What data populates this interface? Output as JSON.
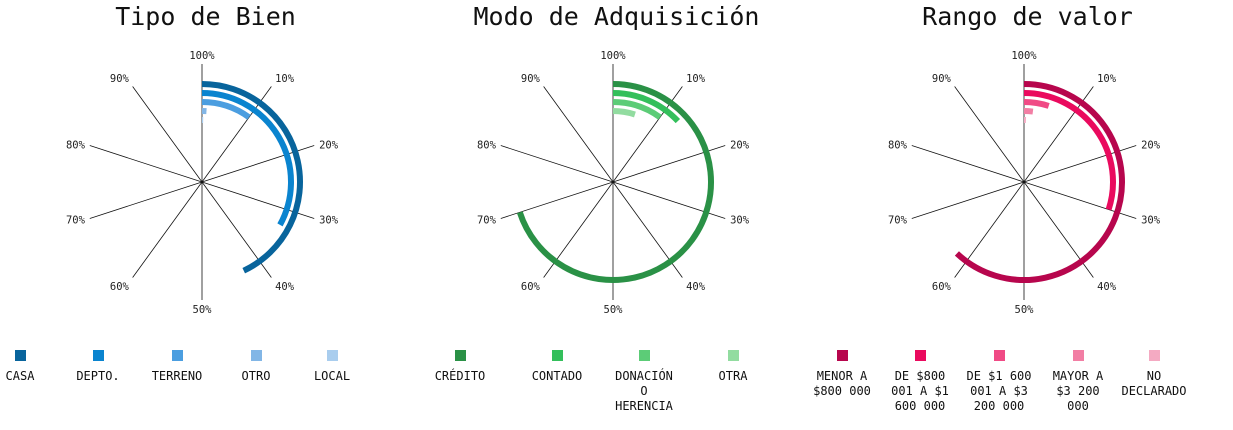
{
  "chart_data": [
    {
      "type": "radial-bar",
      "title": "Tipo de Bien",
      "tick_labels": [
        "100%",
        "10%",
        "20%",
        "30%",
        "40%",
        "50%",
        "60%",
        "70%",
        "80%",
        "90%"
      ],
      "series": [
        {
          "name": "CASA",
          "value": 43,
          "color": "#08649c"
        },
        {
          "name": "DEPTO.",
          "value": 33,
          "color": "#0a84cf"
        },
        {
          "name": "TERRENO",
          "value": 10,
          "color": "#4b9ee0"
        },
        {
          "name": "OTRO",
          "value": 1,
          "color": "#82b6e6"
        },
        {
          "name": "LOCAL",
          "value": 0.3,
          "color": "#a9cdee"
        }
      ]
    },
    {
      "type": "radial-bar",
      "title": "Modo de Adquisición",
      "tick_labels": [
        "100%",
        "10%",
        "20%",
        "30%",
        "40%",
        "50%",
        "60%",
        "70%",
        "80%",
        "90%"
      ],
      "series": [
        {
          "name": "CRÉDITO",
          "value": 70,
          "color": "#2a9146"
        },
        {
          "name": "CONTADO",
          "value": 13,
          "color": "#33bf5b"
        },
        {
          "name": "DONACIÓN O HERENCIA",
          "value": 10,
          "color": "#5ccc77"
        },
        {
          "name": "OTRA",
          "value": 5,
          "color": "#92dca0"
        }
      ]
    },
    {
      "type": "radial-bar",
      "title": "Rango de valor",
      "tick_labels": [
        "100%",
        "10%",
        "20%",
        "30%",
        "40%",
        "50%",
        "60%",
        "70%",
        "80%",
        "90%"
      ],
      "series": [
        {
          "name": "MENOR A $800 000",
          "value": 62,
          "color": "#b7064d"
        },
        {
          "name": "DE $800 001 A $1 600 000",
          "value": 30,
          "color": "#ea0a5e"
        },
        {
          "name": "DE $1 600 001 A $3 200 000",
          "value": 5,
          "color": "#f04a85"
        },
        {
          "name": "MAYOR A $3 200 000",
          "value": 2,
          "color": "#f27ea4"
        },
        {
          "name": "NO DECLARADO",
          "value": 0.5,
          "color": "#f4aac2"
        }
      ]
    }
  ]
}
